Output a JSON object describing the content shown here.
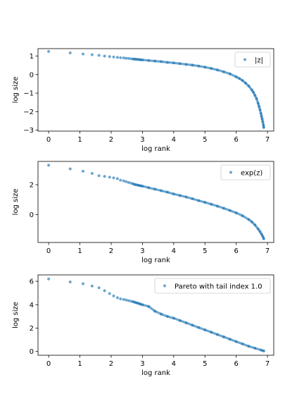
{
  "chart_data": [
    {
      "type": "scatter",
      "xlabel": "log rank",
      "ylabel": "log size",
      "xlim": [
        -0.34,
        7.2
      ],
      "ylim": [
        -3.05,
        1.4
      ],
      "xticks": [
        0,
        1,
        2,
        3,
        4,
        5,
        6,
        7
      ],
      "yticks": [
        -3,
        -2,
        -1,
        0,
        1
      ],
      "grid": false,
      "legend": "top-right",
      "series": [
        {
          "name": "|z|",
          "color": "#1f77b4",
          "x": [
            0,
            0.69,
            1.1,
            1.39,
            1.61,
            1.79,
            1.95,
            2.08,
            2.2,
            2.3,
            2.4,
            2.48,
            2.56,
            2.64,
            2.71,
            2.77,
            2.83,
            2.89,
            2.94,
            3.0,
            3.2,
            3.4,
            3.6,
            3.8,
            4.0,
            4.2,
            4.4,
            4.6,
            4.8,
            5.0,
            5.2,
            5.4,
            5.6,
            5.8,
            6.0,
            6.1,
            6.2,
            6.3,
            6.4,
            6.5,
            6.55,
            6.6,
            6.65,
            6.7,
            6.73,
            6.76,
            6.79,
            6.81,
            6.83,
            6.85,
            6.87,
            6.88
          ],
          "y": [
            1.25,
            1.17,
            1.11,
            1.07,
            1.04,
            1.0,
            0.97,
            0.95,
            0.93,
            0.91,
            0.9,
            0.88,
            0.87,
            0.85,
            0.84,
            0.83,
            0.82,
            0.81,
            0.8,
            0.79,
            0.76,
            0.73,
            0.7,
            0.66,
            0.63,
            0.59,
            0.55,
            0.51,
            0.46,
            0.4,
            0.33,
            0.25,
            0.15,
            0.04,
            -0.12,
            -0.21,
            -0.32,
            -0.46,
            -0.62,
            -0.83,
            -0.96,
            -1.12,
            -1.3,
            -1.55,
            -1.72,
            -1.9,
            -2.1,
            -2.25,
            -2.4,
            -2.55,
            -2.72,
            -2.85
          ]
        }
      ]
    },
    {
      "type": "scatter",
      "xlabel": "log rank",
      "ylabel": "log size",
      "xlim": [
        -0.34,
        7.2
      ],
      "ylim": [
        -1.85,
        3.55
      ],
      "xticks": [
        0,
        1,
        2,
        3,
        4,
        5,
        6,
        7
      ],
      "yticks": [
        0,
        2
      ],
      "grid": false,
      "legend": "top-right",
      "series": [
        {
          "name": "exp(z)",
          "color": "#1f77b4",
          "x": [
            0,
            0.69,
            1.1,
            1.39,
            1.61,
            1.79,
            1.95,
            2.08,
            2.2,
            2.3,
            2.4,
            2.48,
            2.56,
            2.64,
            2.71,
            2.77,
            2.83,
            2.89,
            2.94,
            3.0,
            3.2,
            3.4,
            3.6,
            3.8,
            4.0,
            4.2,
            4.4,
            4.6,
            4.8,
            5.0,
            5.2,
            5.4,
            5.6,
            5.8,
            6.0,
            6.2,
            6.4,
            6.5,
            6.6,
            6.7,
            6.76,
            6.81,
            6.85,
            6.88
          ],
          "y": [
            3.3,
            3.05,
            2.9,
            2.75,
            2.6,
            2.55,
            2.5,
            2.45,
            2.4,
            2.3,
            2.25,
            2.2,
            2.15,
            2.1,
            2.05,
            2.0,
            1.98,
            1.95,
            1.93,
            1.9,
            1.8,
            1.7,
            1.6,
            1.5,
            1.38,
            1.28,
            1.18,
            1.06,
            0.94,
            0.82,
            0.7,
            0.57,
            0.43,
            0.28,
            0.12,
            -0.07,
            -0.32,
            -0.48,
            -0.68,
            -0.95,
            -1.12,
            -1.3,
            -1.45,
            -1.6
          ]
        }
      ]
    },
    {
      "type": "scatter",
      "xlabel": "log rank",
      "ylabel": "log size",
      "xlim": [
        -0.34,
        7.2
      ],
      "ylim": [
        -0.32,
        6.55
      ],
      "xticks": [
        0,
        1,
        2,
        3,
        4,
        5,
        6,
        7
      ],
      "yticks": [
        0,
        2,
        4,
        6
      ],
      "grid": false,
      "legend": "top-right",
      "series": [
        {
          "name": "Pareto with tail index 1.0",
          "color": "#1f77b4",
          "x": [
            0,
            0.69,
            1.1,
            1.39,
            1.61,
            1.79,
            1.95,
            2.08,
            2.2,
            2.3,
            2.4,
            2.48,
            2.56,
            2.64,
            2.71,
            2.77,
            2.83,
            2.89,
            2.94,
            3.0,
            3.2,
            3.4,
            3.6,
            3.8,
            4.0,
            4.2,
            4.4,
            4.6,
            4.8,
            5.0,
            5.2,
            5.4,
            5.6,
            5.8,
            6.0,
            6.2,
            6.4,
            6.6,
            6.8,
            6.88
          ],
          "y": [
            6.2,
            5.95,
            5.8,
            5.6,
            5.45,
            5.2,
            4.95,
            4.75,
            4.6,
            4.5,
            4.45,
            4.4,
            4.35,
            4.3,
            4.25,
            4.2,
            4.15,
            4.1,
            4.05,
            4.0,
            3.85,
            3.45,
            3.2,
            3.0,
            2.85,
            2.65,
            2.45,
            2.25,
            2.05,
            1.85,
            1.65,
            1.45,
            1.25,
            1.05,
            0.85,
            0.65,
            0.45,
            0.28,
            0.12,
            0.05
          ]
        }
      ]
    }
  ]
}
